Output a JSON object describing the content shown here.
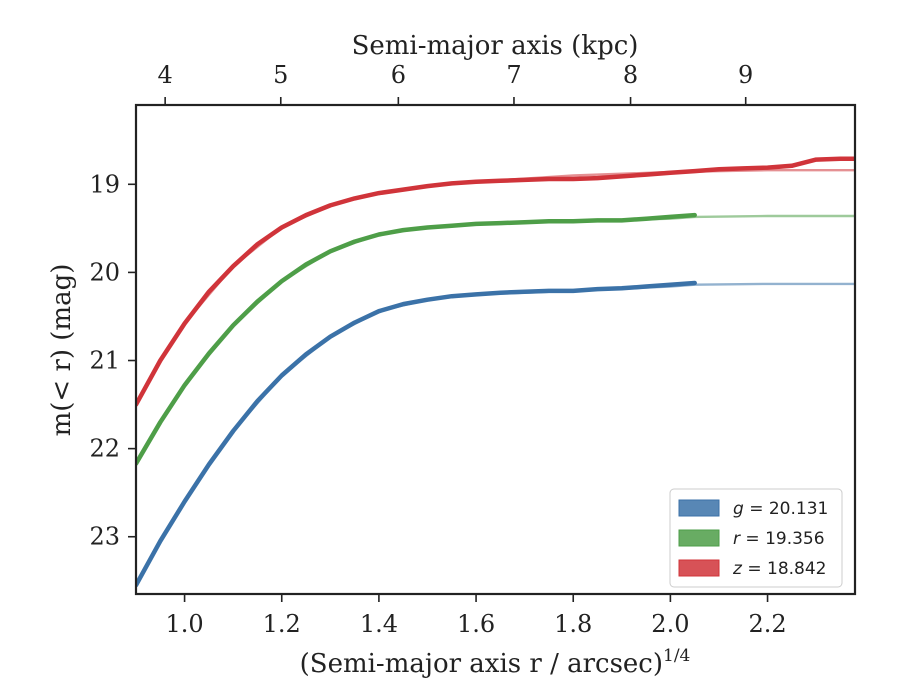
{
  "chart_data": {
    "type": "line",
    "xlabel": "(Semi-major axis r / arcsec)",
    "xlabel_exponent": "1/4",
    "ylabel": "m(< r) (mag)",
    "top_xlabel": "Semi-major axis (kpc)",
    "xlim": [
      0.9,
      2.38
    ],
    "ylim": [
      23.65,
      18.1
    ],
    "y_inverted": true,
    "x_ticks": [
      "1.0",
      "1.2",
      "1.4",
      "1.6",
      "1.8",
      "2.0",
      "2.2"
    ],
    "y_ticks": [
      "19",
      "20",
      "21",
      "22",
      "23"
    ],
    "top_ticks": [
      {
        "label": "4",
        "x": 0.96
      },
      {
        "label": "5",
        "x": 1.198
      },
      {
        "label": "6",
        "x": 1.44
      },
      {
        "label": "7",
        "x": 1.678
      },
      {
        "label": "8",
        "x": 1.918
      },
      {
        "label": "9",
        "x": 2.155
      }
    ],
    "grid": false,
    "legend_position": "bottom-right",
    "series": [
      {
        "name": "g = 20.131",
        "band": "g",
        "value": "20.131",
        "color": "#3b72a8",
        "x": [
          0.9,
          0.95,
          1.0,
          1.05,
          1.1,
          1.15,
          1.2,
          1.25,
          1.3,
          1.35,
          1.4,
          1.45,
          1.5,
          1.55,
          1.6,
          1.65,
          1.7,
          1.75,
          1.8,
          1.85,
          1.9,
          1.95,
          2.0,
          2.05
        ],
        "y": [
          23.55,
          23.05,
          22.6,
          22.18,
          21.8,
          21.46,
          21.17,
          20.93,
          20.73,
          20.57,
          20.44,
          20.36,
          20.31,
          20.27,
          20.25,
          20.23,
          20.22,
          20.21,
          20.21,
          20.19,
          20.18,
          20.16,
          20.14,
          20.12
        ],
        "model_x": [
          1.0,
          1.1,
          1.2,
          1.3,
          1.4,
          1.5,
          1.6,
          1.8,
          2.0,
          2.05,
          2.2,
          2.38
        ],
        "model_y": [
          22.6,
          21.8,
          21.17,
          20.73,
          20.44,
          20.31,
          20.25,
          20.21,
          20.16,
          20.14,
          20.13,
          20.13
        ]
      },
      {
        "name": "r = 19.356",
        "band": "r",
        "value": "19.356",
        "color": "#4e9e48",
        "x": [
          0.9,
          0.95,
          1.0,
          1.05,
          1.1,
          1.15,
          1.2,
          1.25,
          1.3,
          1.35,
          1.4,
          1.45,
          1.5,
          1.55,
          1.6,
          1.65,
          1.7,
          1.75,
          1.8,
          1.85,
          1.9,
          1.95,
          2.0,
          2.05
        ],
        "y": [
          22.17,
          21.7,
          21.28,
          20.92,
          20.6,
          20.33,
          20.1,
          19.91,
          19.76,
          19.65,
          19.57,
          19.52,
          19.49,
          19.47,
          19.45,
          19.44,
          19.43,
          19.42,
          19.42,
          19.41,
          19.41,
          19.39,
          19.37,
          19.35
        ],
        "model_x": [
          1.0,
          1.1,
          1.2,
          1.3,
          1.4,
          1.5,
          1.6,
          1.8,
          2.0,
          2.05,
          2.2,
          2.38
        ],
        "model_y": [
          21.28,
          20.6,
          20.1,
          19.76,
          19.57,
          19.49,
          19.45,
          19.42,
          19.39,
          19.37,
          19.36,
          19.36
        ]
      },
      {
        "name": "z = 18.842",
        "band": "z",
        "value": "18.842",
        "color": "#d0343a",
        "x": [
          0.9,
          0.95,
          1.0,
          1.05,
          1.1,
          1.15,
          1.2,
          1.25,
          1.3,
          1.35,
          1.4,
          1.45,
          1.5,
          1.55,
          1.6,
          1.65,
          1.7,
          1.75,
          1.8,
          1.85,
          1.9,
          1.95,
          2.0,
          2.05,
          2.1,
          2.15,
          2.2,
          2.25,
          2.3,
          2.35,
          2.38
        ],
        "y": [
          21.5,
          21.0,
          20.58,
          20.22,
          19.93,
          19.68,
          19.49,
          19.35,
          19.24,
          19.16,
          19.1,
          19.06,
          19.02,
          18.99,
          18.97,
          18.96,
          18.95,
          18.94,
          18.94,
          18.93,
          18.91,
          18.89,
          18.87,
          18.85,
          18.83,
          18.82,
          18.81,
          18.79,
          18.72,
          18.71,
          18.71
        ],
        "model_x": [
          1.0,
          1.1,
          1.2,
          1.3,
          1.4,
          1.5,
          1.6,
          1.8,
          2.0,
          2.2,
          2.38
        ],
        "model_y": [
          20.58,
          19.93,
          19.49,
          19.24,
          19.1,
          19.02,
          18.97,
          18.9,
          18.86,
          18.84,
          18.84
        ]
      }
    ]
  }
}
